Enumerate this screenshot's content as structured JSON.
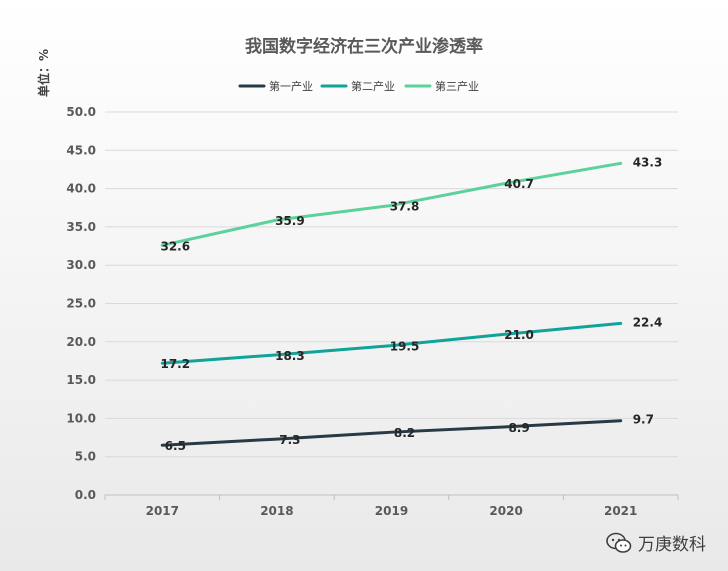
{
  "chart_data": {
    "type": "line",
    "title": "我国数字经济在三次产业渗透率",
    "unit_label": "单位：%",
    "x": [
      "2017",
      "2018",
      "2019",
      "2020",
      "2021"
    ],
    "ylim": [
      0,
      50
    ],
    "yticks": [
      "0.0",
      "5.0",
      "10.0",
      "15.0",
      "20.0",
      "25.0",
      "30.0",
      "35.0",
      "40.0",
      "45.0",
      "50.0"
    ],
    "grid": true,
    "legend_position": "top",
    "series": [
      {
        "name": "第一产业",
        "color": "#263b45",
        "values": [
          6.5,
          7.3,
          8.2,
          8.9,
          9.7
        ]
      },
      {
        "name": "第二产业",
        "color": "#0fa39a",
        "values": [
          17.2,
          18.3,
          19.5,
          21.0,
          22.4
        ]
      },
      {
        "name": "第三产业",
        "color": "#5cd29a",
        "values": [
          32.6,
          35.9,
          37.8,
          40.7,
          43.3
        ]
      }
    ],
    "data_labels": [
      [
        "6.5",
        "7.3",
        "8.2",
        "8.9",
        "9.7"
      ],
      [
        "17.2",
        "18.3",
        "19.5",
        "21.0",
        "22.4"
      ],
      [
        "32.6",
        "35.9",
        "37.8",
        "40.7",
        "43.3"
      ]
    ]
  },
  "watermark": {
    "text": "万庚数科",
    "icon": "wechat-icon"
  }
}
